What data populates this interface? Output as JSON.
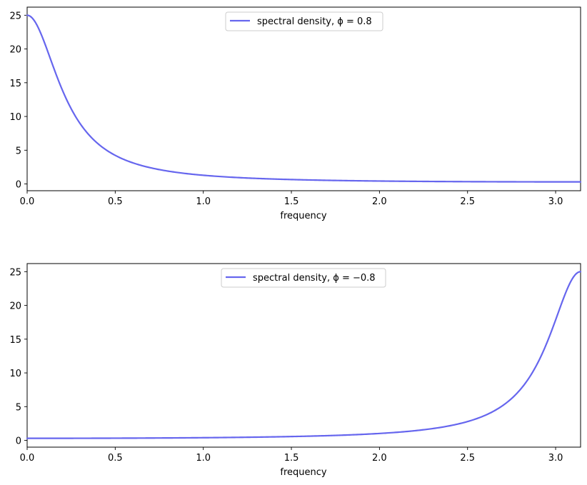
{
  "chart_data": [
    {
      "type": "line",
      "xlabel": "frequency",
      "ylabel": "",
      "xlim": [
        0,
        3.14159
      ],
      "ylim": [
        -1,
        26.2
      ],
      "xticks": [
        "0.0",
        "0.5",
        "1.0",
        "1.5",
        "2.0",
        "2.5",
        "3.0"
      ],
      "yticks": [
        "0",
        "5",
        "10",
        "15",
        "20",
        "25"
      ],
      "legend_position": "upper center",
      "legend_label_prefix": "spectral density, ",
      "legend_label_math": "ϕ = 0.8",
      "phi": 0.8,
      "color": "#6666ee",
      "series": [
        {
          "x": [
            0.0,
            0.1,
            0.2,
            0.3,
            0.4,
            0.5,
            0.6,
            0.8,
            1.0,
            1.2,
            1.5,
            2.0,
            2.5,
            3.0,
            3.14
          ],
          "values": [
            25.0,
            20.1,
            13.3,
            8.79,
            6.08,
            4.43,
            3.38,
            2.17,
            1.52,
            1.13,
            0.79,
            0.5,
            0.37,
            0.31,
            0.31
          ]
        }
      ]
    },
    {
      "type": "line",
      "xlabel": "frequency",
      "ylabel": "",
      "xlim": [
        0,
        3.14159
      ],
      "ylim": [
        -1,
        26.2
      ],
      "xticks": [
        "0.0",
        "0.5",
        "1.0",
        "1.5",
        "2.0",
        "2.5",
        "3.0"
      ],
      "yticks": [
        "0",
        "5",
        "10",
        "15",
        "20",
        "25"
      ],
      "legend_position": "upper center",
      "legend_label_prefix": "spectral density, ",
      "legend_label_math": "ϕ = −0.8",
      "phi": -0.8,
      "color": "#6666ee",
      "series": [
        {
          "x": [
            0.0,
            0.5,
            1.0,
            1.5,
            2.0,
            2.5,
            2.8,
            3.0,
            3.14
          ],
          "values": [
            0.31,
            0.34,
            0.46,
            0.76,
            1.52,
            3.38,
            8.79,
            20.1,
            25.0
          ]
        }
      ]
    }
  ]
}
